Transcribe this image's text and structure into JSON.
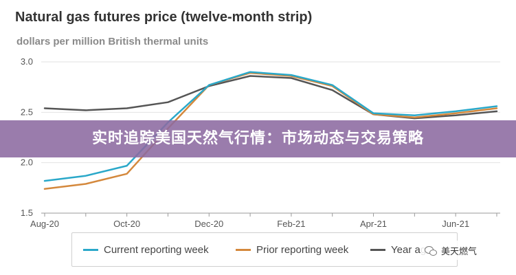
{
  "chart_data": {
    "type": "line",
    "title": "Natural gas futures price (twelve-month strip)",
    "subtitle": "dollars per million British thermal units",
    "xlabel": "",
    "ylabel": "",
    "x": [
      "2020-08",
      "2020-09",
      "2020-10",
      "2020-11",
      "2020-12",
      "2021-01",
      "2021-02",
      "2021-03",
      "2021-04",
      "2021-05",
      "2021-06",
      "2021-07"
    ],
    "xtick_labels": [
      "Aug-20",
      "Oct-20",
      "Dec-20",
      "Feb-21",
      "Apr-21",
      "Jun-21"
    ],
    "ylim": [
      1.5,
      3.0
    ],
    "yticks": [
      "1.5",
      "2.0",
      "2.5",
      "3.0"
    ],
    "grid": "horizontal",
    "legend_position": "bottom",
    "series": [
      {
        "name": "Current reporting week",
        "color": "#2aa8c9",
        "values": [
          1.82,
          1.87,
          1.97,
          2.4,
          2.77,
          2.9,
          2.87,
          2.77,
          2.49,
          2.47,
          2.51,
          2.56
        ]
      },
      {
        "name": "Prior reporting week",
        "color": "#d4883c",
        "values": [
          1.74,
          1.79,
          1.89,
          2.34,
          2.77,
          2.89,
          2.86,
          2.76,
          2.48,
          2.45,
          2.49,
          2.54
        ]
      },
      {
        "name": "Year ago",
        "color": "#555555",
        "values": [
          2.54,
          2.52,
          2.54,
          2.6,
          2.76,
          2.86,
          2.84,
          2.72,
          2.48,
          2.44,
          2.47,
          2.51
        ]
      }
    ]
  },
  "legend": {
    "current_label": "Current reporting week",
    "prior_label": "Prior reporting week",
    "year_label": "Year ago"
  },
  "overlay": {
    "banner_text": "实时追踪美国天然气行情：市场动态与交易策略",
    "banner_color": "#8c6aa0",
    "watermark_text": "美天燃气"
  }
}
